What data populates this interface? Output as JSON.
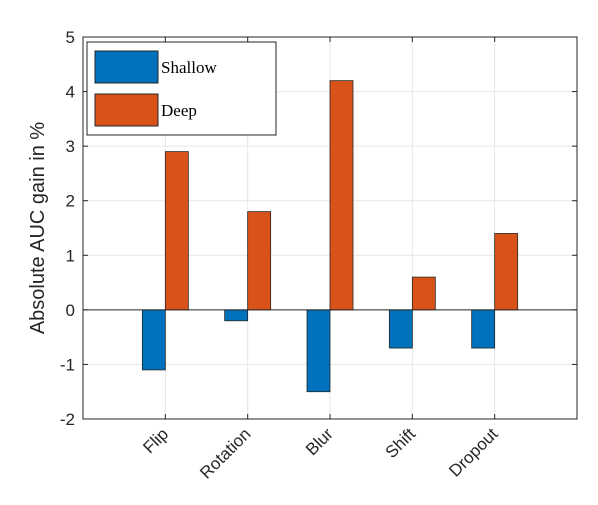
{
  "chart_data": {
    "type": "bar",
    "title": "",
    "xlabel": "",
    "ylabel": "Absolute AUC gain in %",
    "categories": [
      "Flip",
      "Rotation",
      "Blur",
      "Shift",
      "Dropout"
    ],
    "series": [
      {
        "name": "Shallow",
        "values": [
          -1.1,
          -0.2,
          -1.5,
          -0.7,
          -0.7
        ],
        "color": "#0072BD"
      },
      {
        "name": "Deep",
        "values": [
          2.9,
          1.8,
          4.2,
          0.6,
          1.4
        ],
        "color": "#D95319"
      }
    ],
    "ylim": [
      -2,
      5
    ],
    "yticks": [
      "-2",
      "-1",
      "0",
      "1",
      "2",
      "3",
      "4",
      "5"
    ],
    "grid": true,
    "legend_position": "top-left"
  }
}
